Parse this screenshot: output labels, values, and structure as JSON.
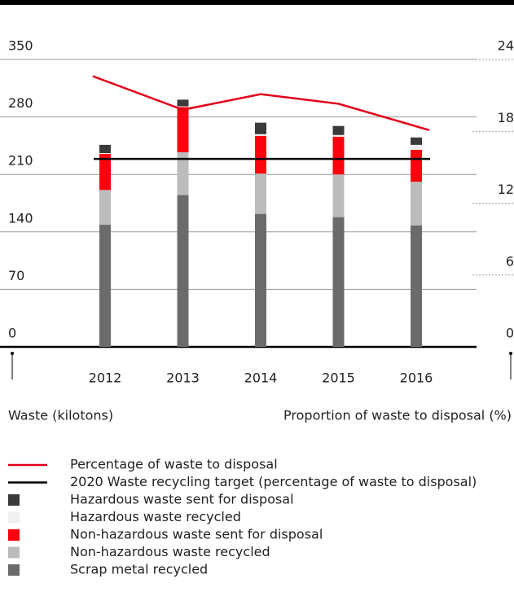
{
  "chart_data": {
    "type": "bar",
    "stacked": true,
    "categories": [
      "2012",
      "2013",
      "2014",
      "2015",
      "2016"
    ],
    "series": [
      {
        "name": "Scrap metal recycled",
        "color": "#6b6b6b",
        "values": [
          149,
          185,
          162,
          158,
          148
        ]
      },
      {
        "name": "Non-hazardous waste recycled",
        "color": "#bcbcbc",
        "values": [
          42,
          52,
          49,
          52,
          53
        ]
      },
      {
        "name": "Non-hazardous waste sent for disposal",
        "color": "#ff000f",
        "values": [
          44,
          55,
          46,
          46,
          39
        ]
      },
      {
        "name": "Hazardous waste recycled",
        "color": "#f0f0f0",
        "values": [
          1,
          1,
          2,
          2,
          6
        ]
      },
      {
        "name": "Hazardous waste sent for disposal",
        "color": "#3a3a3a",
        "values": [
          10,
          8,
          14,
          11,
          9
        ]
      },
      {
        "name": "Percentage of waste to disposal",
        "color": "#e2001a",
        "type": "line",
        "axis": "y2",
        "values": [
          22.6,
          19.8,
          21.1,
          20.3,
          18.1
        ]
      }
    ],
    "target": {
      "name": "2020 Waste recycling target (percentage of waste to disposal)",
      "color": "#000000",
      "value": 15.7,
      "axis": "y2"
    },
    "ylabel": "Waste (kilotons)",
    "y2label": "Proportion of waste to disposal (%)",
    "ylim": [
      0,
      350
    ],
    "yticks": [
      0,
      70,
      140,
      210,
      280,
      350
    ],
    "y2lim": [
      0,
      24
    ],
    "y2ticks": [
      0,
      6,
      12,
      18,
      24
    ]
  }
}
